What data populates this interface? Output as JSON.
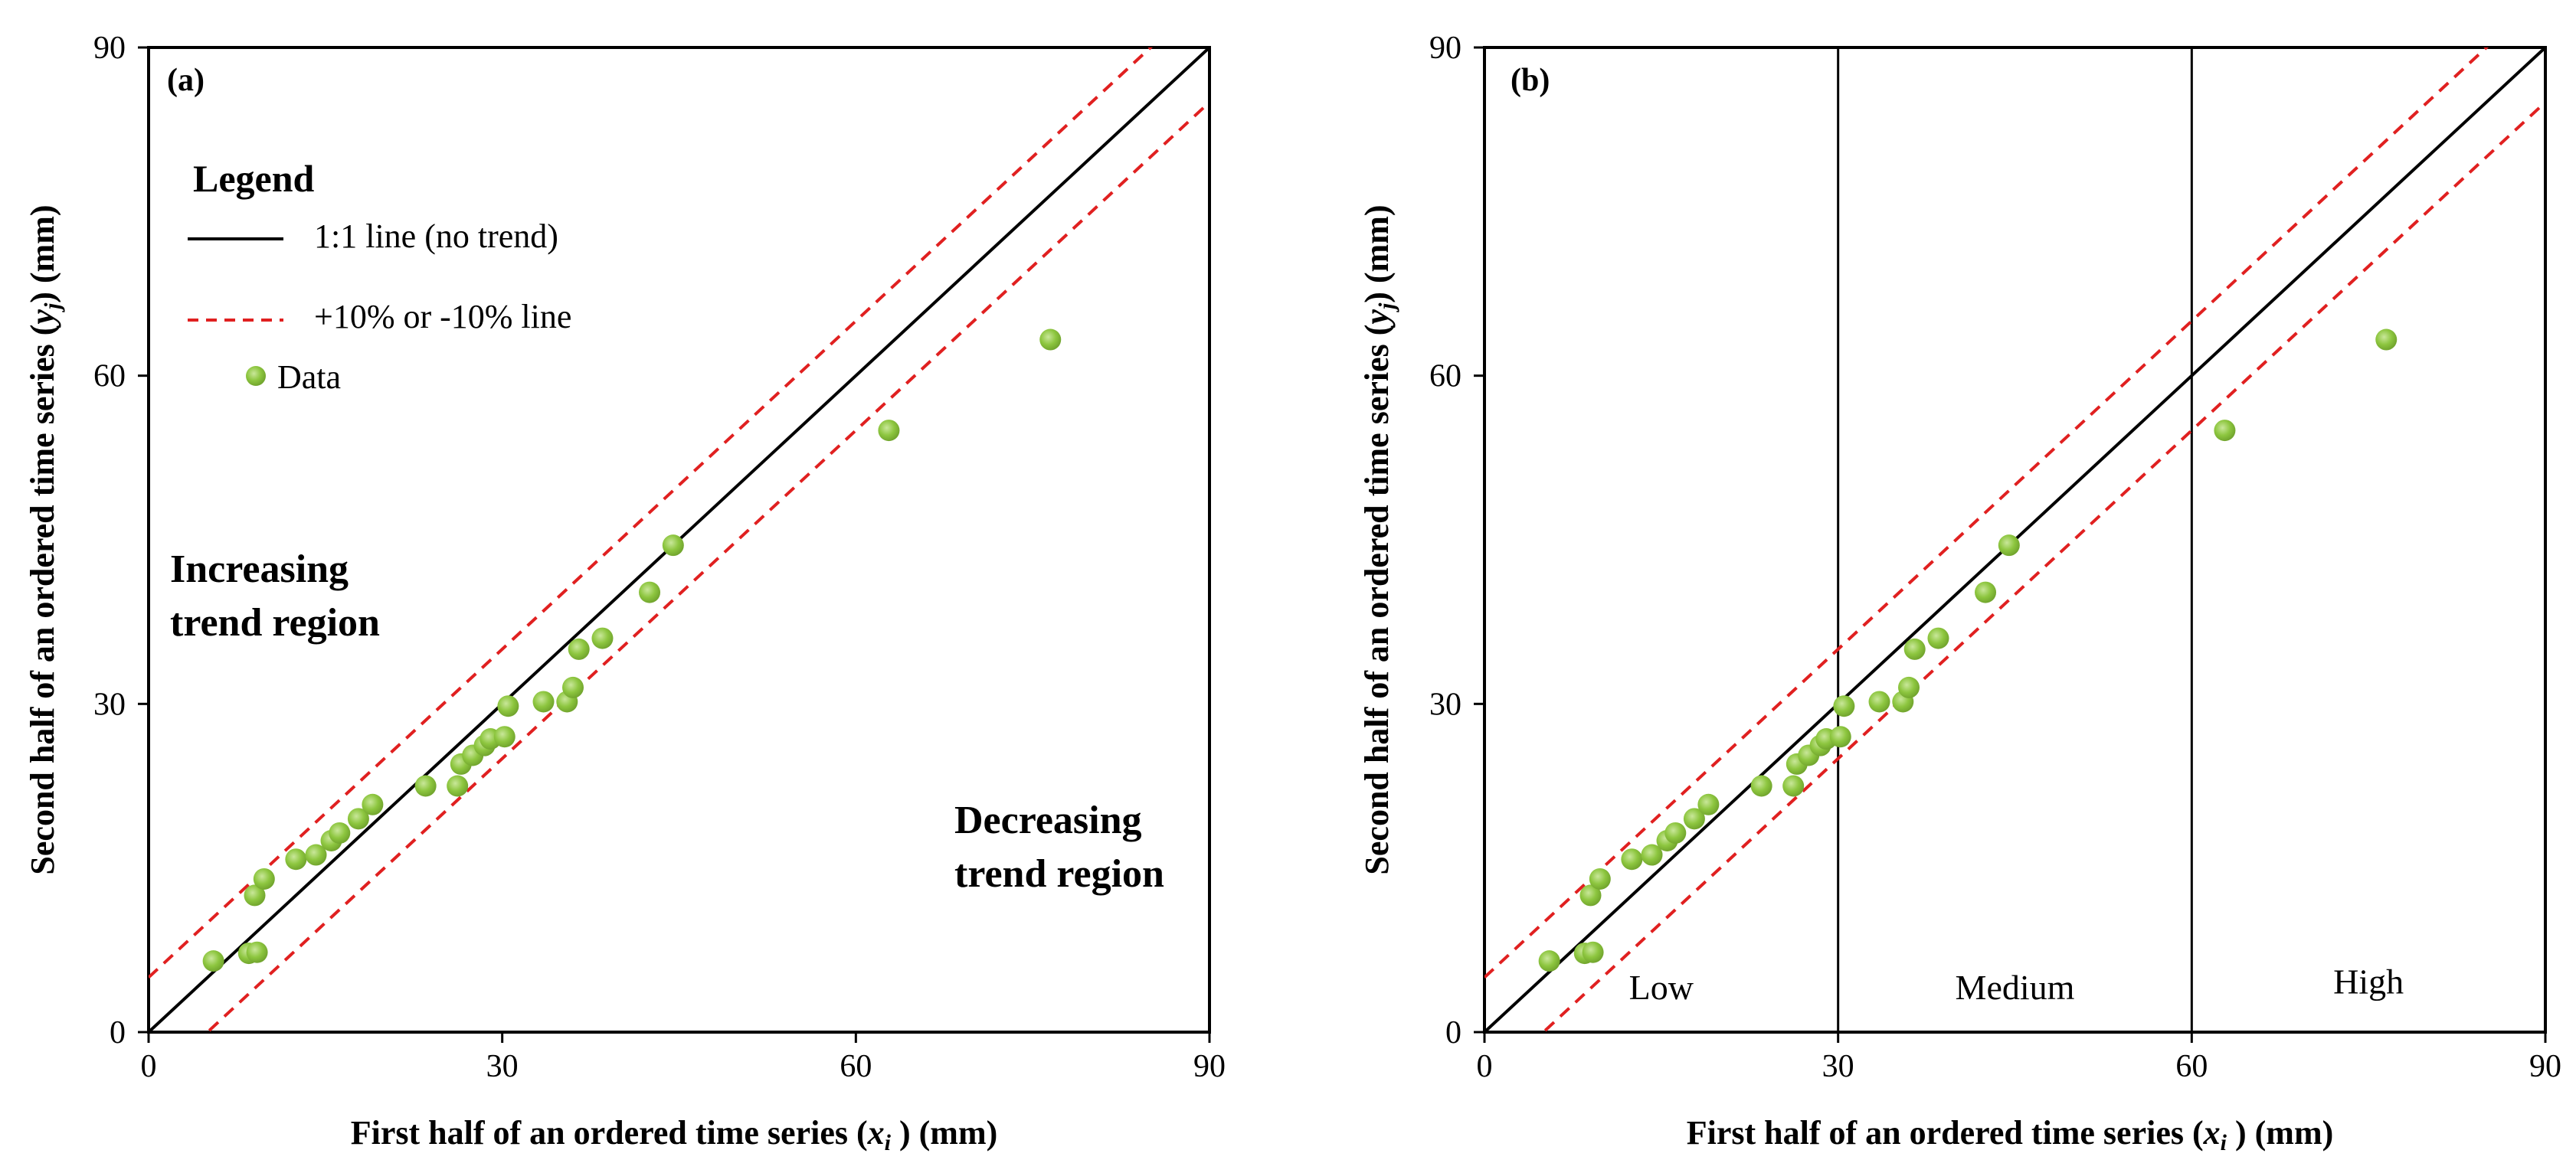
{
  "chart_data": [
    {
      "type": "scatter",
      "panel_label": "(a)",
      "xlabel": "First half of an ordered time series (xi ) (mm)",
      "ylabel": "Second half of an ordered time series (yj) (mm)",
      "xlim": [
        0,
        90
      ],
      "ylim": [
        0,
        90
      ],
      "xticks": [
        0,
        30,
        60,
        90
      ],
      "yticks": [
        0,
        30,
        60,
        90
      ],
      "lines": [
        {
          "name": "1:1 line (no trend)",
          "style": "solid",
          "color": "#000000",
          "slope": 1.0,
          "intercept": 0
        },
        {
          "name": "+10% line",
          "style": "dashed",
          "color": "#e02020",
          "offset": 5
        },
        {
          "name": "-10% line",
          "style": "dashed",
          "color": "#e02020",
          "offset": -5
        }
      ],
      "series": [
        {
          "name": "Data",
          "color": "#8dc63f",
          "points": [
            [
              5.5,
              6.5
            ],
            [
              8.5,
              7.2
            ],
            [
              9.2,
              7.3
            ],
            [
              9.0,
              12.5
            ],
            [
              9.8,
              14.0
            ],
            [
              12.5,
              15.8
            ],
            [
              14.2,
              16.2
            ],
            [
              15.5,
              17.5
            ],
            [
              16.2,
              18.2
            ],
            [
              17.8,
              19.5
            ],
            [
              19.0,
              20.8
            ],
            [
              23.5,
              22.5
            ],
            [
              26.2,
              22.5
            ],
            [
              26.5,
              24.5
            ],
            [
              27.5,
              25.3
            ],
            [
              28.5,
              26.2
            ],
            [
              29.0,
              26.8
            ],
            [
              30.2,
              27.0
            ],
            [
              30.5,
              29.8
            ],
            [
              33.5,
              30.2
            ],
            [
              35.5,
              30.2
            ],
            [
              36.0,
              31.5
            ],
            [
              36.5,
              35.0
            ],
            [
              38.5,
              36.0
            ],
            [
              42.5,
              40.2
            ],
            [
              44.5,
              44.5
            ],
            [
              62.8,
              55.0
            ],
            [
              76.5,
              63.3
            ]
          ]
        }
      ],
      "legend": {
        "title": "Legend",
        "items": [
          "1:1 line (no trend)",
          "+10% or -10% line",
          "Data"
        ]
      },
      "annotations": {
        "increasing_line1": "Increasing",
        "increasing_line2": "trend region",
        "decreasing_line1": "Decreasing",
        "decreasing_line2": "trend region"
      }
    },
    {
      "type": "scatter",
      "panel_label": "(b)",
      "xlabel": "First half of an ordered time series (xi ) (mm)",
      "ylabel": "Second half of an ordered time series (yj) (mm)",
      "xlim": [
        0,
        90
      ],
      "ylim": [
        0,
        90
      ],
      "xticks": [
        0,
        30,
        60,
        90
      ],
      "yticks": [
        0,
        30,
        60,
        90
      ],
      "vlines": [
        30,
        60
      ],
      "zones": [
        {
          "label": "Low",
          "x": 15,
          "y": 4
        },
        {
          "label": "Medium",
          "x": 45,
          "y": 4
        },
        {
          "label": "High",
          "x": 75,
          "y": 4.5
        }
      ],
      "lines": [
        {
          "name": "1:1 line (no trend)",
          "style": "solid",
          "color": "#000000",
          "slope": 1.0,
          "intercept": 0
        },
        {
          "name": "+10% line",
          "style": "dashed",
          "color": "#e02020",
          "offset": 5
        },
        {
          "name": "-10% line",
          "style": "dashed",
          "color": "#e02020",
          "offset": -5
        }
      ],
      "series": [
        {
          "name": "Data",
          "color": "#8dc63f",
          "points": [
            [
              5.5,
              6.5
            ],
            [
              8.5,
              7.2
            ],
            [
              9.2,
              7.3
            ],
            [
              9.0,
              12.5
            ],
            [
              9.8,
              14.0
            ],
            [
              12.5,
              15.8
            ],
            [
              14.2,
              16.2
            ],
            [
              15.5,
              17.5
            ],
            [
              16.2,
              18.2
            ],
            [
              17.8,
              19.5
            ],
            [
              19.0,
              20.8
            ],
            [
              23.5,
              22.5
            ],
            [
              26.2,
              22.5
            ],
            [
              26.5,
              24.5
            ],
            [
              27.5,
              25.3
            ],
            [
              28.5,
              26.2
            ],
            [
              29.0,
              26.8
            ],
            [
              30.2,
              27.0
            ],
            [
              30.5,
              29.8
            ],
            [
              33.5,
              30.2
            ],
            [
              35.5,
              30.2
            ],
            [
              36.0,
              31.5
            ],
            [
              36.5,
              35.0
            ],
            [
              38.5,
              36.0
            ],
            [
              42.5,
              40.2
            ],
            [
              44.5,
              44.5
            ],
            [
              62.8,
              55.0
            ],
            [
              76.5,
              63.3
            ]
          ]
        }
      ]
    }
  ]
}
